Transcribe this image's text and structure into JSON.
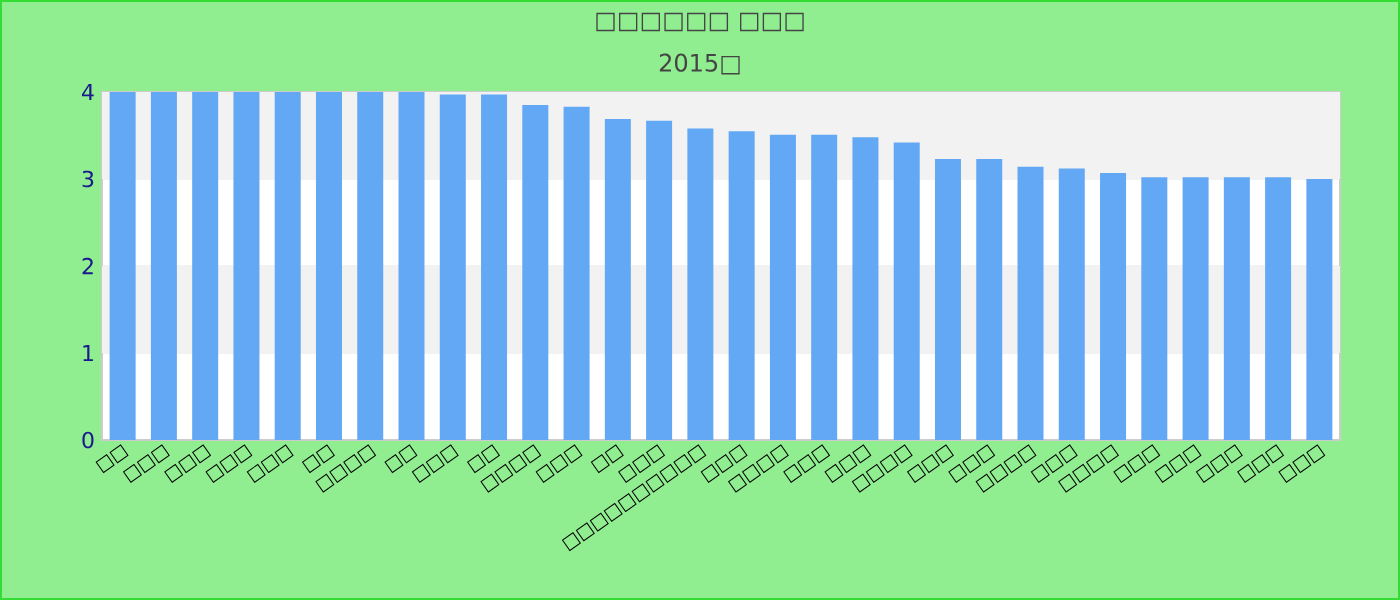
{
  "chart_data": {
    "type": "bar",
    "title": "□□□□□□ □□□",
    "subtitle": "2015□",
    "categories": [
      "□□",
      "□□□",
      "□□□",
      "□□□",
      "□□□",
      "□□",
      "□□□□",
      "□□",
      "□□□",
      "□□",
      "□□□□",
      "□□□",
      "□□",
      "□□□",
      "□□□□□□□□□□",
      "□□□",
      "□□□□",
      "□□□",
      "□□□",
      "□□□□",
      "□□□",
      "□□□",
      "□□□□",
      "□□□",
      "□□□□",
      "□□□",
      "□□□",
      "□□□",
      "□□□",
      "□□□"
    ],
    "values": [
      4,
      4,
      4,
      4,
      4,
      4,
      4,
      4,
      3.97,
      3.97,
      3.85,
      3.83,
      3.69,
      3.67,
      3.58,
      3.55,
      3.51,
      3.51,
      3.48,
      3.42,
      3.23,
      3.23,
      3.14,
      3.12,
      3.07,
      3.02,
      3.02,
      3.02,
      3.02,
      3.0
    ],
    "color": "#62a8f4",
    "ylim": [
      0,
      4
    ],
    "yticks": [
      0,
      1,
      2,
      3,
      4
    ],
    "grid": "y"
  }
}
